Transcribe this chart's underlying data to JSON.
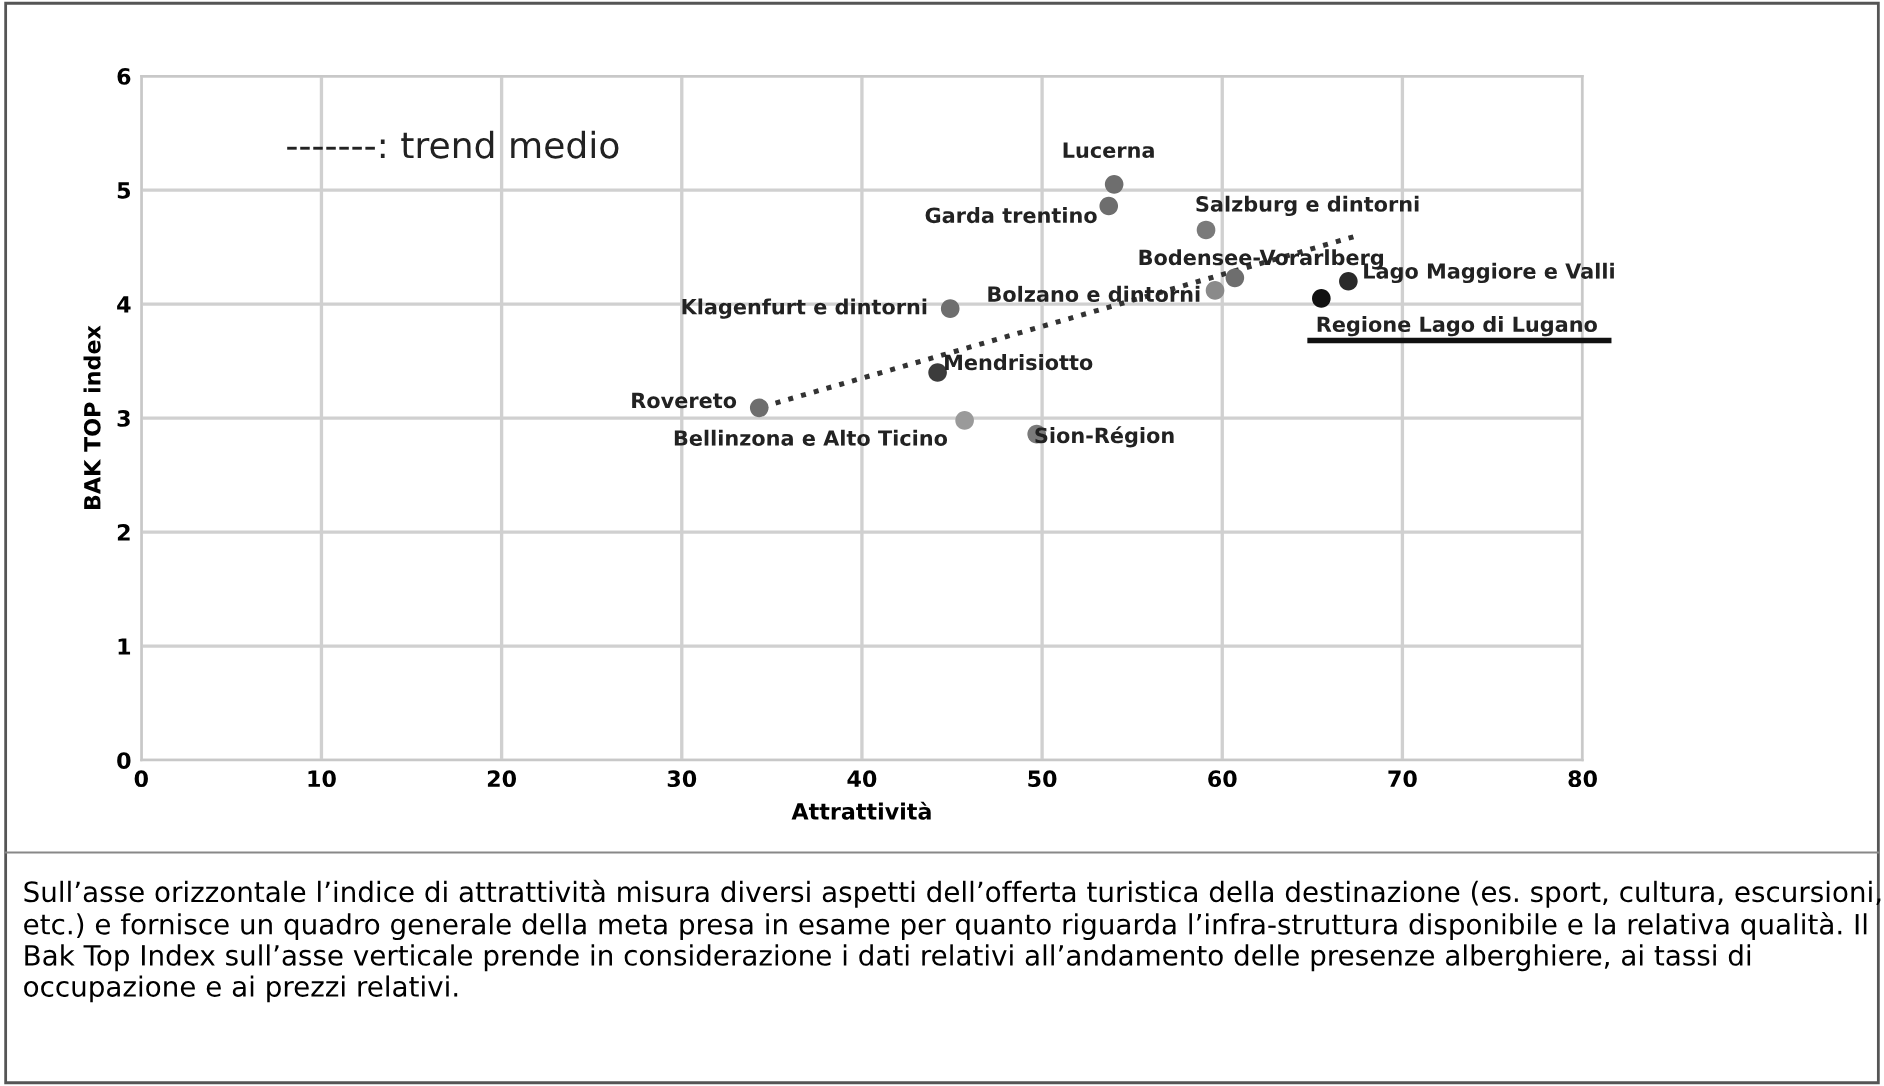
{
  "chart_data": {
    "type": "scatter",
    "xlabel": "Attrattività",
    "ylabel": "BAK TOP index",
    "xlim": [
      0,
      80
    ],
    "xticks": [
      0,
      10,
      20,
      30,
      40,
      50,
      60,
      70,
      80
    ],
    "ylim": [
      0,
      6
    ],
    "yticks": [
      0,
      1,
      2,
      3,
      4,
      5,
      6
    ],
    "grid": true,
    "marker": "circle",
    "series": [
      {
        "type": "scatter",
        "x": [
          54.0,
          53.7,
          59.1,
          60.7,
          59.6,
          44.9,
          44.2,
          34.3,
          45.7,
          49.7,
          67.0,
          65.5
        ],
        "values": [
          5.05,
          4.86,
          4.65,
          4.23,
          4.12,
          3.96,
          3.4,
          3.09,
          2.98,
          2.86,
          4.2,
          4.05
        ],
        "colors": [
          "#6e6e6e",
          "#6e6e6e",
          "#7a7a7a",
          "#6e6e6e",
          "#8a8a8a",
          "#6e6e6e",
          "#3c3c3c",
          "#6e6e6e",
          "#9a9a9a",
          "#7a7a7a",
          "#2a2a2a",
          "#111111"
        ]
      },
      {
        "type": "line",
        "x": [
          34.5,
          67.5
        ],
        "values": [
          3.1,
          4.6
        ],
        "color": "#333333",
        "line_style": "dotted",
        "marker": "none"
      }
    ],
    "annotations": [
      {
        "text": "Lucerna",
        "x": 54.0,
        "y": 5.05
      },
      {
        "text": "Garda trentino",
        "x": 53.7,
        "y": 4.86
      },
      {
        "text": "Salzburg e dintorni",
        "x": 59.1,
        "y": 4.65
      },
      {
        "text": "Bodensee-Vorarlberg",
        "x": 60.7,
        "y": 4.23
      },
      {
        "text": "Bolzano e dintorni",
        "x": 59.6,
        "y": 4.12
      },
      {
        "text": "Klagenfurt e dintorni",
        "x": 44.9,
        "y": 3.96
      },
      {
        "text": "Mendrisiotto",
        "x": 44.2,
        "y": 3.4
      },
      {
        "text": "Rovereto",
        "x": 34.3,
        "y": 3.09
      },
      {
        "text": "Bellinzona e Alto Ticino",
        "x": 45.7,
        "y": 2.98
      },
      {
        "text": "Sion-Région",
        "x": 49.7,
        "y": 2.86
      },
      {
        "text": "Lago Maggiore e Valli",
        "x": 67.0,
        "y": 4.2
      },
      {
        "text": "Regione Lago di Lugano",
        "x": 65.5,
        "y": 4.05
      },
      "-------: trend medio",
      "Sull’asse orizzontale l’indice di attrattività misura diversi aspetti dell’offerta turistica della destinazione (es. sport, cultura, escursioni, etc.) e fornisce un quadro generale della meta presa in esame per quanto riguarda l’infra-struttura disponibile e la relativa qualità. Il Bak Top Index sull’asse verticale prende in considerazione i dati relativi all’andamento delle presenze alberghiere, ai tassi di occupazione e ai prezzi relativi."
    ]
  }
}
